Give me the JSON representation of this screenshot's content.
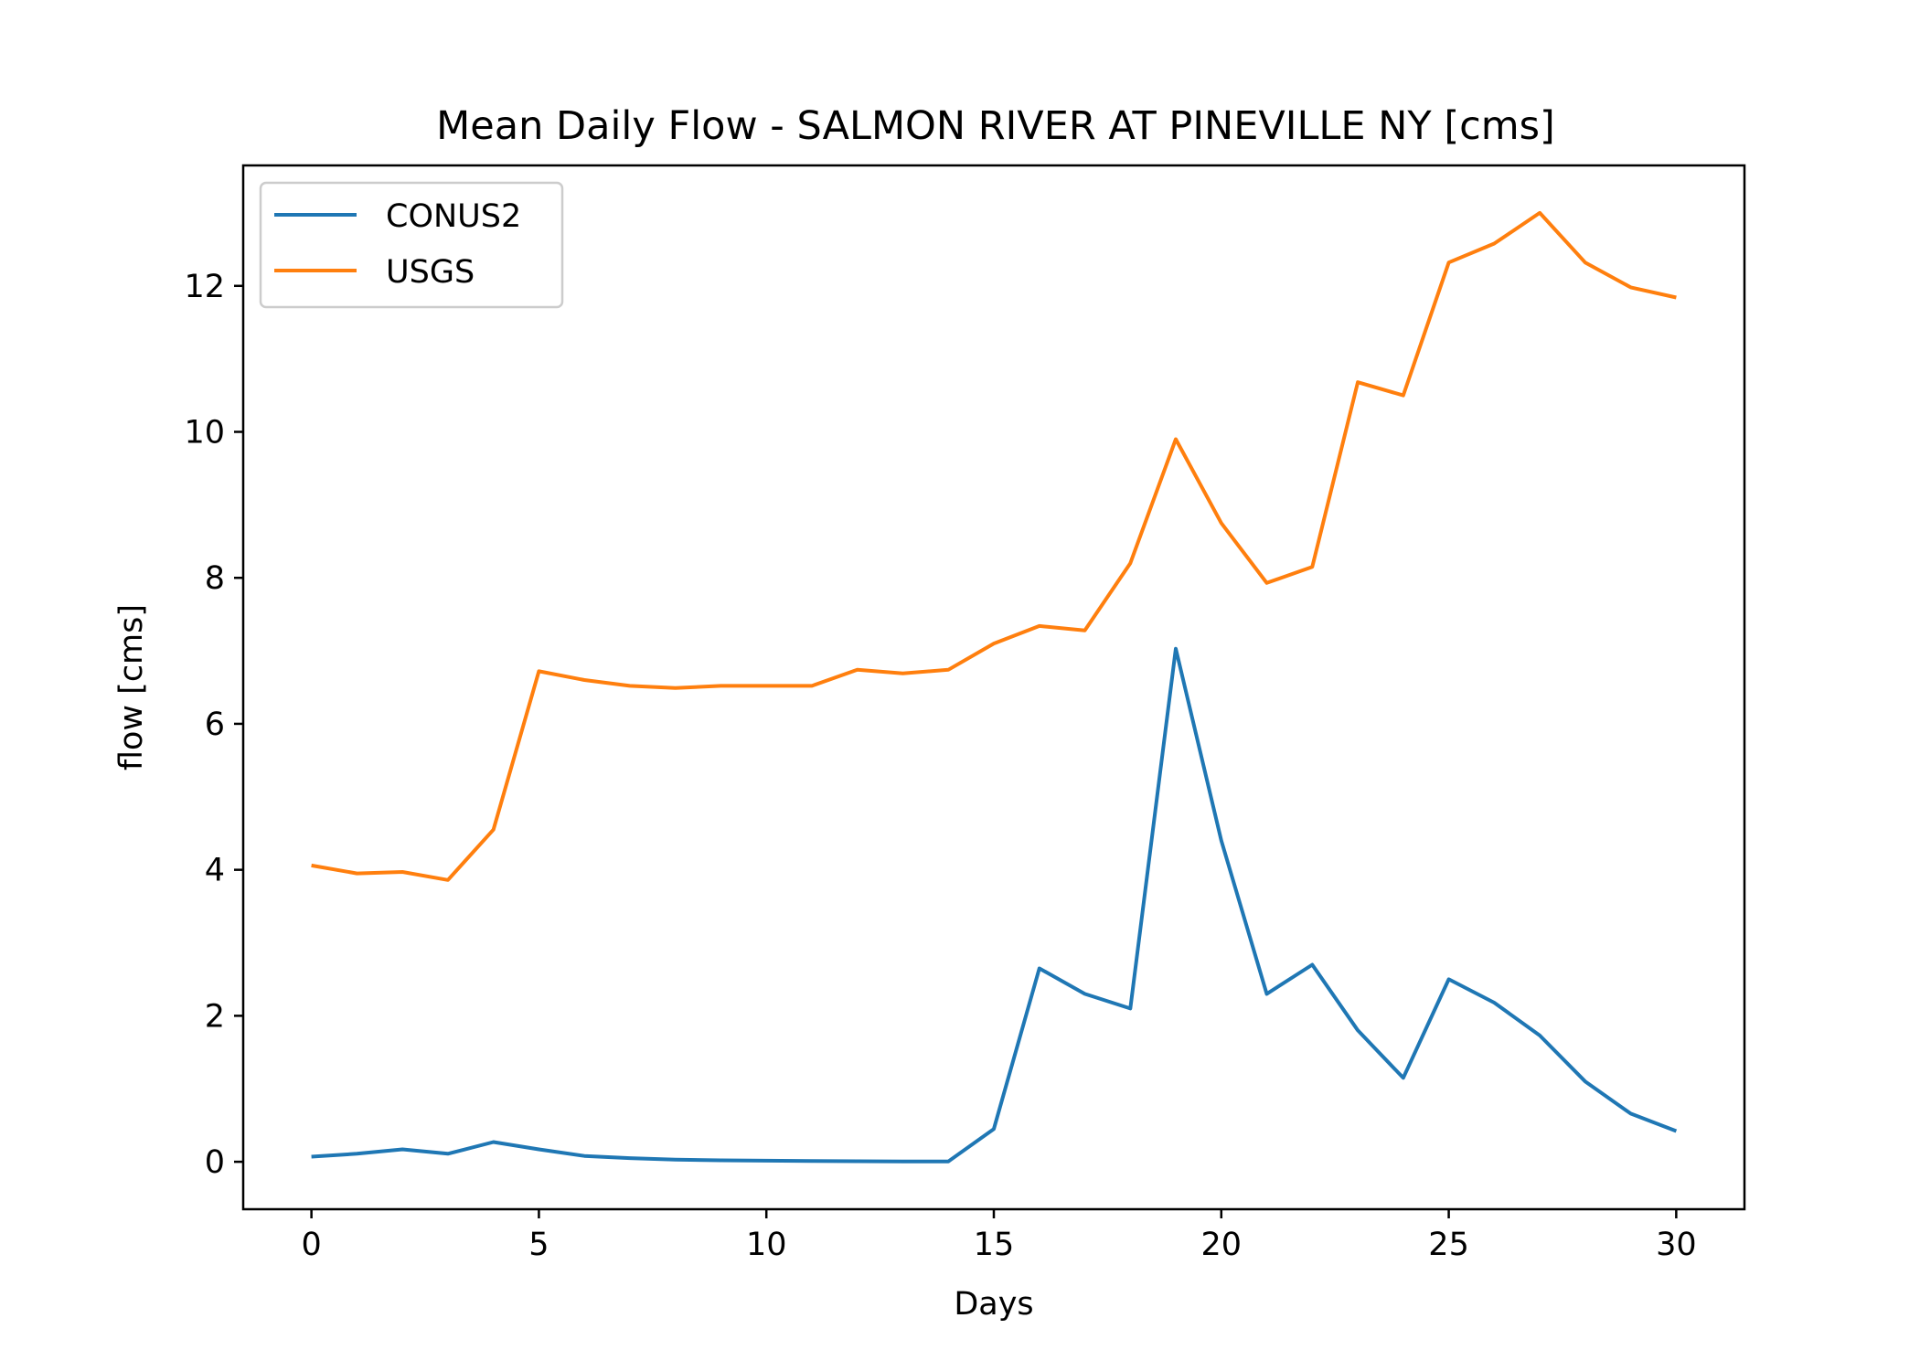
{
  "chart_data": {
    "type": "line",
    "title": "Mean Daily Flow - SALMON RIVER AT PINEVILLE NY [cms]",
    "xlabel": "Days",
    "ylabel": "flow [cms]",
    "xlim": [
      -1.5,
      31.5
    ],
    "ylim": [
      -0.65,
      13.65
    ],
    "xticks": [
      0,
      5,
      10,
      15,
      20,
      25,
      30
    ],
    "yticks": [
      0,
      2,
      4,
      6,
      8,
      10,
      12
    ],
    "grid": false,
    "legend_position": "upper left",
    "x": [
      0,
      1,
      2,
      3,
      4,
      5,
      6,
      7,
      8,
      9,
      10,
      11,
      12,
      13,
      14,
      15,
      16,
      17,
      18,
      19,
      20,
      21,
      22,
      23,
      24,
      25,
      26,
      27,
      28,
      29,
      30
    ],
    "series": [
      {
        "name": "CONUS2",
        "color": "#1f77b4",
        "values": [
          0.07,
          0.11,
          0.17,
          0.11,
          0.27,
          0.17,
          0.08,
          0.05,
          0.03,
          0.02,
          0.015,
          0.01,
          0.008,
          0.005,
          0.005,
          0.45,
          2.65,
          2.3,
          2.1,
          7.03,
          4.4,
          2.3,
          2.7,
          1.8,
          1.15,
          2.5,
          2.18,
          1.73,
          1.1,
          0.66,
          0.42
        ]
      },
      {
        "name": "USGS",
        "color": "#ff7f0e",
        "values": [
          4.06,
          3.95,
          3.97,
          3.86,
          4.55,
          6.72,
          6.6,
          6.52,
          6.49,
          6.52,
          6.52,
          6.52,
          6.74,
          6.69,
          6.74,
          7.1,
          7.34,
          7.28,
          8.2,
          9.9,
          8.75,
          7.93,
          8.15,
          10.68,
          10.5,
          12.32,
          12.58,
          13.0,
          12.32,
          11.98,
          11.84
        ]
      }
    ]
  }
}
